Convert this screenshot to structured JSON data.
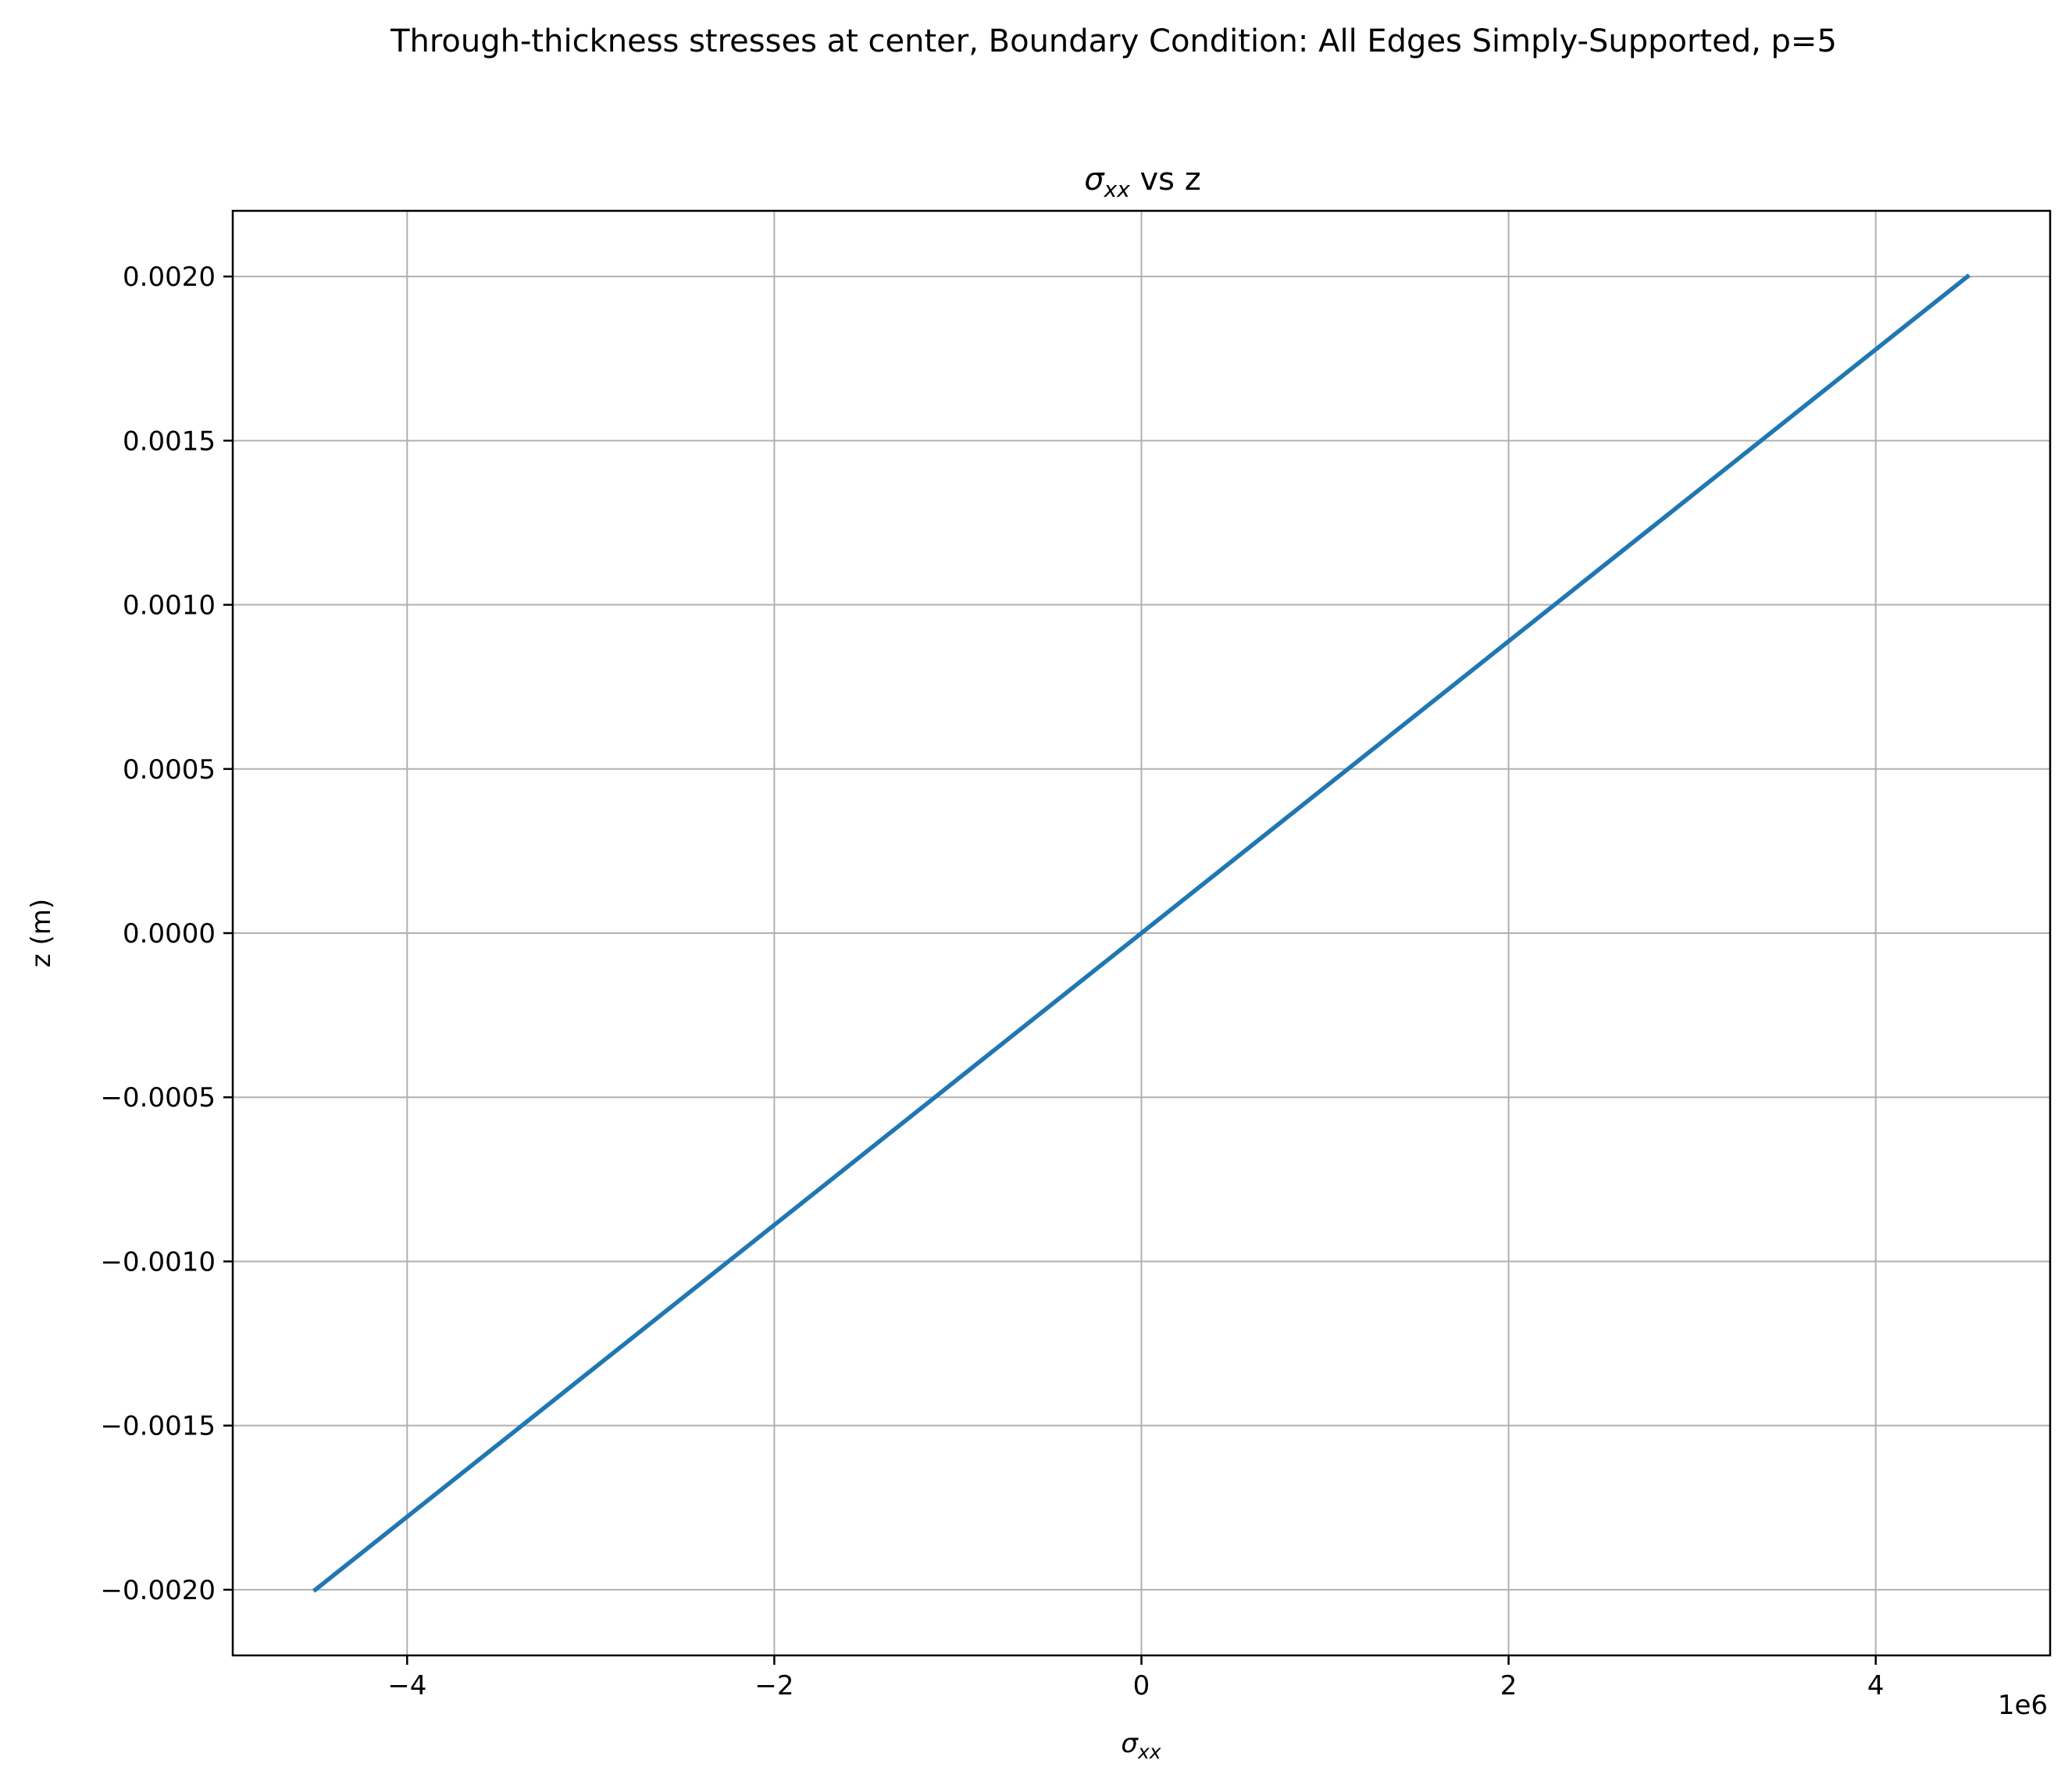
{
  "figure": {
    "suptitle": "Through-thickness stresses at center, Boundary Condition: All Edges Simply-Supported, p=5"
  },
  "chart_data": {
    "type": "line",
    "title_symbol": "σ",
    "title_subscript": "xx",
    "title_rest": " vs z",
    "xlabel_symbol": "σ",
    "xlabel_subscript": "xx",
    "ylabel": "z (m)",
    "x_offset_text": "1e6",
    "x_scale": 1000000,
    "xlim": [
      -4950000,
      4950000
    ],
    "ylim": [
      -0.0022,
      0.0022
    ],
    "xticks": [
      -4000000,
      -2000000,
      0,
      2000000,
      4000000
    ],
    "xtick_labels": [
      "−4",
      "−2",
      "0",
      "2",
      "4"
    ],
    "yticks": [
      -0.002,
      -0.0015,
      -0.001,
      -0.0005,
      0,
      0.0005,
      0.001,
      0.0015,
      0.002
    ],
    "ytick_labels": [
      "−0.0020",
      "−0.0015",
      "−0.0010",
      "−0.0005",
      "0.0000",
      "0.0005",
      "0.0010",
      "0.0015",
      "0.0020"
    ],
    "grid": true,
    "legend": "none",
    "series": [
      {
        "color": "#1f77b4",
        "x": [
          -4500000,
          0,
          4500000
        ],
        "y": [
          -0.002,
          0,
          0.002
        ]
      }
    ]
  }
}
